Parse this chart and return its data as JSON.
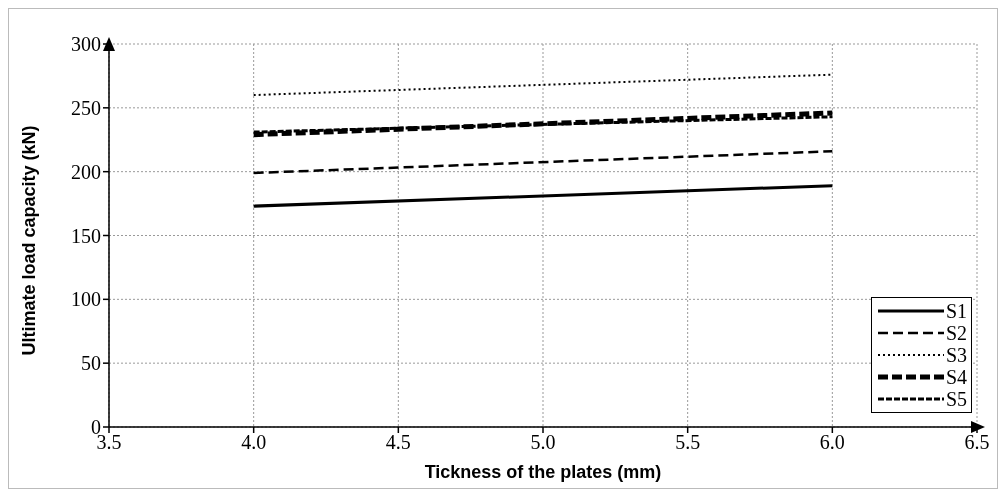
{
  "chart_data": {
    "type": "line",
    "xlabel": "Tickness of the plates (mm)",
    "ylabel": "Ultimate load capacity (kN)",
    "x": [
      4.0,
      6.0
    ],
    "series": [
      {
        "name": "S1",
        "color": "#000000",
        "line_style": "solid",
        "values": [
          173,
          189
        ]
      },
      {
        "name": "S2",
        "color": "#000000",
        "line_style": "dashed",
        "values": [
          199,
          216
        ]
      },
      {
        "name": "S3",
        "color": "#000000",
        "line_style": "dotted",
        "values": [
          260,
          276
        ]
      },
      {
        "name": "S4",
        "color": "#000000",
        "line_style": "dashed",
        "values": [
          229,
          246
        ]
      },
      {
        "name": "S5",
        "color": "#000000",
        "line_style": "dashed",
        "values": [
          231,
          243
        ]
      }
    ],
    "xlim": [
      3.5,
      6.5
    ],
    "xticks": [
      {
        "value": 3.5,
        "label": "3.5"
      },
      {
        "value": 4,
        "label": "4.0"
      },
      {
        "value": 4.5,
        "label": "4.5"
      },
      {
        "value": 5,
        "label": "5.0"
      },
      {
        "value": 5.5,
        "label": "5.5"
      },
      {
        "value": 6,
        "label": "6.0"
      },
      {
        "value": 6.5,
        "label": "6.5"
      }
    ],
    "ylim": [
      0,
      300
    ],
    "yticks": [
      0,
      50,
      100,
      150,
      200,
      250,
      300
    ],
    "grid": true,
    "legend": "bottom right",
    "marker": "none"
  }
}
